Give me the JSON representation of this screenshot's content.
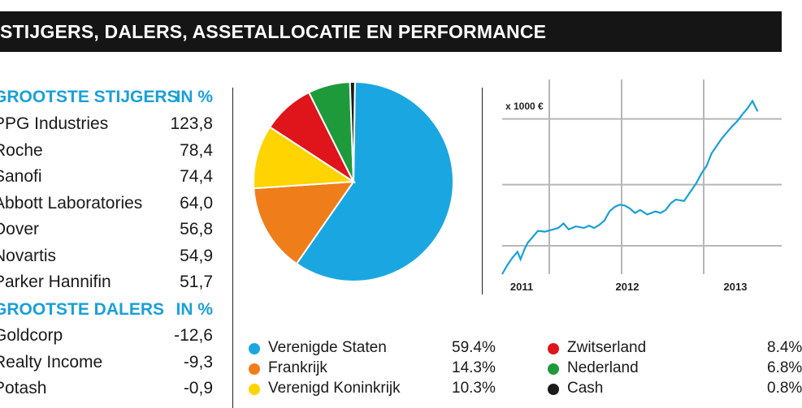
{
  "header": {
    "title": "STIJGERS, DALERS, ASSETALLOCATIE EN PERFORMANCE"
  },
  "gainers": {
    "heading": "GROOTSTE STIJGERS",
    "unit": "IN %",
    "rows": [
      {
        "name": "PPG Industries",
        "value": "123,8"
      },
      {
        "name": "Roche",
        "value": "78,4"
      },
      {
        "name": "Sanofi",
        "value": "74,4"
      },
      {
        "name": "Abbott Laboratories",
        "value": "64,0"
      },
      {
        "name": "Dover",
        "value": "56,8"
      },
      {
        "name": "Novartis",
        "value": "54,9"
      },
      {
        "name": "Parker Hannifin",
        "value": "51,7"
      }
    ]
  },
  "losers": {
    "heading": "GROOTSTE DALERS",
    "unit": "IN %",
    "rows": [
      {
        "name": "Goldcorp",
        "value": "-12,6"
      },
      {
        "name": "Realty Income",
        "value": "-9,3"
      },
      {
        "name": "Potash",
        "value": "-0,9"
      }
    ]
  },
  "chart_data": [
    {
      "type": "pie",
      "slices": [
        {
          "label": "Verenigde Staten",
          "pct_text": "59.4%",
          "value": 59.4,
          "color": "#1aa7e1"
        },
        {
          "label": "Frankrijk",
          "pct_text": "14.3%",
          "value": 14.3,
          "color": "#ef7d1a"
        },
        {
          "label": "Verenigd Koninkrijk",
          "pct_text": "10.3%",
          "value": 10.3,
          "color": "#ffd400"
        },
        {
          "label": "Zwitserland",
          "pct_text": "8.4%",
          "value": 8.4,
          "color": "#e0141b"
        },
        {
          "label": "Nederland",
          "pct_text": "6.8%",
          "value": 6.8,
          "color": "#1f9a3b"
        },
        {
          "label": "Cash",
          "pct_text": "0.8%",
          "value": 0.8,
          "color": "#1a1a1a"
        }
      ]
    },
    {
      "type": "line",
      "unit_label": "x 1000 €",
      "x_ticks": [
        "2011",
        "2012",
        "2013"
      ],
      "xlim": [
        2011.0,
        2013.6
      ],
      "series": [
        {
          "color": "#1aa0d8",
          "x": [
            2011.0,
            2011.05,
            2011.1,
            2011.15,
            2011.18,
            2011.22,
            2011.25,
            2011.3,
            2011.35,
            2011.42,
            2011.5,
            2011.55,
            2011.6,
            2011.65,
            2011.72,
            2011.8,
            2011.85,
            2011.9,
            2011.95,
            2012.0,
            2012.05,
            2012.1,
            2012.15,
            2012.2,
            2012.25,
            2012.3,
            2012.35,
            2012.42,
            2012.5,
            2012.55,
            2012.6,
            2012.65,
            2012.7,
            2012.78,
            2012.85,
            2012.9,
            2012.95,
            2013.0,
            2013.05,
            2013.1,
            2013.15,
            2013.2,
            2013.25,
            2013.3,
            2013.35,
            2013.4,
            2013.45,
            2013.5
          ],
          "y": [
            0.0,
            0.12,
            0.22,
            0.3,
            0.2,
            0.34,
            0.42,
            0.5,
            0.58,
            0.57,
            0.6,
            0.62,
            0.68,
            0.6,
            0.64,
            0.62,
            0.65,
            0.62,
            0.66,
            0.72,
            0.84,
            0.9,
            0.93,
            0.92,
            0.88,
            0.82,
            0.86,
            0.8,
            0.84,
            0.82,
            0.86,
            0.95,
            1.0,
            0.98,
            1.12,
            1.22,
            1.35,
            1.45,
            1.62,
            1.72,
            1.82,
            1.9,
            1.98,
            2.05,
            2.14,
            2.22,
            2.32,
            2.18
          ]
        }
      ]
    }
  ]
}
